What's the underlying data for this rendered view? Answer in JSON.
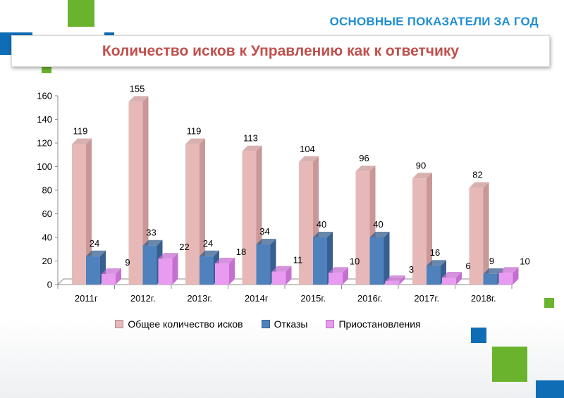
{
  "header": {
    "title": "ОСНОВНЫЕ ПОКАЗАТЕЛИ ЗА ГОД"
  },
  "banner": {
    "title": "Количество исков к Управлению как к ответчику"
  },
  "colors": {
    "series": [
      "#e6b9b8",
      "#4f81bd",
      "#e89bf0"
    ],
    "series_dark": [
      "#c99795",
      "#375f8f",
      "#c56fd0"
    ],
    "green": "#6ab42d",
    "blue": "#0f6db5"
  },
  "chart_data": {
    "type": "bar",
    "categories": [
      "2011г",
      "2012г.",
      "2013г.",
      "2014г",
      "2015г.",
      "2016г.",
      "2017г.",
      "2018г."
    ],
    "series": [
      {
        "name": "Общее количество исков",
        "values": [
          119,
          155,
          119,
          113,
          104,
          96,
          90,
          82
        ]
      },
      {
        "name": "Отказы",
        "values": [
          24,
          33,
          24,
          34,
          40,
          40,
          16,
          9
        ]
      },
      {
        "name": "Приостановления",
        "values": [
          9,
          22,
          18,
          11,
          10,
          3,
          6,
          10
        ]
      }
    ],
    "yticks": [
      "0",
      "20",
      "40",
      "60",
      "80",
      "100",
      "120",
      "140",
      "160"
    ],
    "ylim": [
      0,
      160
    ],
    "grid": false,
    "legend_position": "bottom",
    "style": "3d-column"
  }
}
